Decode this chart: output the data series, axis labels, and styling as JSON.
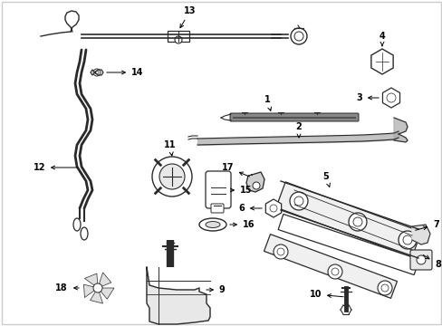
{
  "bg_color": "#ffffff",
  "line_color": "#2a2a2a",
  "text_color": "#000000",
  "figsize": [
    4.89,
    3.6
  ],
  "dpi": 100,
  "border_color": "#cccccc",
  "gray_fill": "#888888",
  "light_gray": "#cccccc"
}
